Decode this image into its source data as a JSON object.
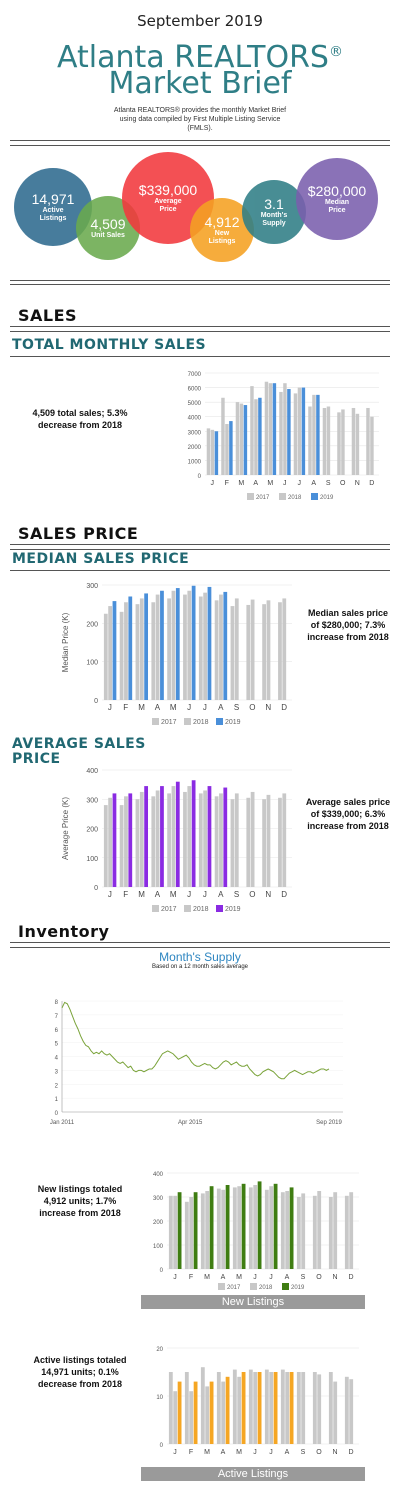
{
  "header": {
    "month": "September 2019",
    "title_line1": "Atlanta REALTORS",
    "reg_mark": "®",
    "title_line2": "Market Brief",
    "intro": "Atlanta REALTORS® provides the monthly Market Brief using data compiled by First Multiple Listing Service (FMLS)."
  },
  "bubbles": [
    {
      "value": "14,971",
      "label": "Active Listings",
      "color": "#2e6a8f"
    },
    {
      "value": "$339,000",
      "label": "Average Price",
      "color": "#f2383d"
    },
    {
      "value": "4,509",
      "label": "Unit Sales",
      "color": "#6aaa4e"
    },
    {
      "value": "4,912",
      "label": "New Listings",
      "color": "#f5a122"
    },
    {
      "value": "3.1",
      "label": "Month's Supply",
      "color": "#2f7e86"
    },
    {
      "value": "$280,000",
      "label": "Median Price",
      "color": "#7a5fae"
    }
  ],
  "sections": {
    "sales": "SALES",
    "total_monthly_sales": "TOTAL MONTHLY SALES",
    "sales_price": "SALES PRICE",
    "median_sales_price": "MEDIAN SALES PRICE",
    "average_sales_price_1": "AVERAGE SALES",
    "average_sales_price_2": "PRICE",
    "inventory": "Inventory"
  },
  "side_texts": {
    "sales": "4,509 total sales; 5.3% decrease from 2018",
    "median": "Median sales price of $280,000; 7.3% increase from 2018",
    "average": "Average sales price of $339,000; 6.3% increase from 2018",
    "new_listings": "New listings totaled 4,912 units; 1.7% increase from 2018",
    "active_listings": "Active listings totaled 14,971 units; 0.1% decrease from 2018"
  },
  "chart_labels": {
    "months_supply_title": "Month's Supply",
    "months_supply_subtitle": "Based on a 12 month sales average",
    "new_listings_bar": "New Listings",
    "active_listings_bar": "Active Listings"
  },
  "colors": {
    "y2017": "#c8c8c8",
    "y2018": "#c8c8c8",
    "y2019_sales": "#4a8fd9",
    "y2019_median": "#4a8fd9",
    "y2019_average": "#8a2be2",
    "y2019_new": "#3f7d12",
    "y2019_active": "#f5a623",
    "line": "#7aa33a"
  },
  "chart_data": [
    {
      "type": "bar",
      "id": "total_monthly_sales",
      "categories": [
        "J",
        "F",
        "M",
        "A",
        "M",
        "J",
        "J",
        "A",
        "S",
        "O",
        "N",
        "D"
      ],
      "ylim": [
        0,
        7000
      ],
      "yticks": [
        0,
        1000,
        2000,
        3000,
        4000,
        5000,
        6000,
        7000
      ],
      "ylabel": "",
      "legend": [
        "2017",
        "2018",
        "2019"
      ],
      "series": [
        {
          "name": "2017",
          "values": [
            3200,
            5300,
            5000,
            6100,
            6400,
            5700,
            5600,
            4700,
            4600,
            4300,
            4600,
            4600
          ]
        },
        {
          "name": "2018",
          "values": [
            3100,
            3500,
            4900,
            5200,
            6300,
            6300,
            6000,
            5500,
            4700,
            4500,
            4200,
            4000
          ]
        },
        {
          "name": "2019",
          "values": [
            3000,
            3700,
            4800,
            5300,
            6300,
            5900,
            6000,
            5500,
            null,
            null,
            null,
            null
          ]
        }
      ]
    },
    {
      "type": "bar",
      "id": "median_sales_price",
      "categories": [
        "J",
        "F",
        "M",
        "A",
        "M",
        "J",
        "J",
        "A",
        "S",
        "O",
        "N",
        "D"
      ],
      "ylim": [
        0,
        300
      ],
      "yticks": [
        0,
        100,
        200,
        300
      ],
      "ylabel": "Median Price (K)",
      "legend": [
        "2017",
        "2018",
        "2019"
      ],
      "series": [
        {
          "name": "2017",
          "values": [
            225,
            230,
            250,
            255,
            265,
            275,
            270,
            260,
            245,
            248,
            250,
            255
          ]
        },
        {
          "name": "2018",
          "values": [
            245,
            255,
            265,
            275,
            285,
            285,
            280,
            275,
            265,
            262,
            260,
            265
          ]
        },
        {
          "name": "2019",
          "values": [
            258,
            270,
            278,
            285,
            292,
            298,
            295,
            282,
            null,
            null,
            null,
            null
          ]
        }
      ]
    },
    {
      "type": "bar",
      "id": "average_sales_price",
      "categories": [
        "J",
        "F",
        "M",
        "A",
        "M",
        "J",
        "J",
        "A",
        "S",
        "O",
        "N",
        "D"
      ],
      "ylim": [
        0,
        400
      ],
      "yticks": [
        0,
        100,
        200,
        300,
        400
      ],
      "ylabel": "Average Price (K)",
      "legend": [
        "2017",
        "2018",
        "2019"
      ],
      "series": [
        {
          "name": "2017",
          "values": [
            280,
            280,
            300,
            310,
            320,
            325,
            320,
            310,
            300,
            305,
            300,
            305
          ]
        },
        {
          "name": "2018",
          "values": [
            305,
            310,
            325,
            330,
            345,
            345,
            330,
            320,
            320,
            325,
            315,
            320
          ]
        },
        {
          "name": "2019",
          "values": [
            320,
            320,
            345,
            345,
            360,
            365,
            345,
            340,
            null,
            null,
            null,
            null
          ]
        }
      ]
    },
    {
      "type": "line",
      "id": "months_supply",
      "title": "Month's Supply",
      "subtitle": "Based on a 12 month sales average",
      "xticks": [
        "Jan 2011",
        "Apr 2015",
        "Sep 2019"
      ],
      "ylim": [
        0,
        8
      ],
      "yticks": [
        0,
        1,
        2,
        3,
        4,
        5,
        6,
        7,
        8
      ],
      "values": [
        7.5,
        7.9,
        7.8,
        7.4,
        6.9,
        6.4,
        6.0,
        5.5,
        5.1,
        4.8,
        4.7,
        4.4,
        4.2,
        4.3,
        4.2,
        4.4,
        4.2,
        4.1,
        4.2,
        4.0,
        3.8,
        3.6,
        3.5,
        3.6,
        3.4,
        3.2,
        3.3,
        3.0,
        2.9,
        3.0,
        3.0,
        2.9,
        3.0,
        3.1,
        3.1,
        3.3,
        3.6,
        3.9,
        4.2,
        4.3,
        4.4,
        4.3,
        4.2,
        4.0,
        3.8,
        3.9,
        4.0,
        4.1,
        3.9,
        3.6,
        3.4,
        3.3,
        3.3,
        3.4,
        3.5,
        3.4,
        3.4,
        3.2,
        3.1,
        3.2,
        3.4,
        3.6,
        3.7,
        3.6,
        3.4,
        3.5,
        3.6,
        3.4,
        3.3,
        3.3,
        3.4,
        3.1,
        2.9,
        2.7,
        2.6,
        2.7,
        2.9,
        3.0,
        3.1,
        3.0,
        2.9,
        2.7,
        2.5,
        2.4,
        2.4,
        2.6,
        2.8,
        2.9,
        3.0,
        2.9,
        2.8,
        2.7,
        2.8,
        2.9,
        2.9,
        2.8,
        2.9,
        3.0,
        3.1,
        3.1,
        3.0,
        3.1
      ]
    },
    {
      "type": "bar",
      "id": "new_listings",
      "categories": [
        "J",
        "F",
        "M",
        "A",
        "M",
        "J",
        "J",
        "A",
        "S",
        "O",
        "N",
        "D"
      ],
      "ylim": [
        0,
        400
      ],
      "yticks": [
        0,
        100,
        200,
        300,
        400
      ],
      "ylabel": "",
      "legend": [
        "2017",
        "2018",
        "2019"
      ],
      "series": [
        {
          "name": "2017",
          "values": [
            305,
            280,
            315,
            335,
            340,
            340,
            330,
            320,
            300,
            305,
            300,
            305
          ]
        },
        {
          "name": "2018",
          "values": [
            305,
            300,
            325,
            330,
            345,
            350,
            345,
            325,
            315,
            325,
            320,
            320
          ]
        },
        {
          "name": "2019",
          "values": [
            320,
            320,
            345,
            350,
            355,
            365,
            355,
            340,
            null,
            null,
            null,
            null
          ]
        }
      ]
    },
    {
      "type": "bar",
      "id": "active_listings",
      "categories": [
        "J",
        "F",
        "M",
        "A",
        "M",
        "J",
        "J",
        "A",
        "S",
        "O",
        "N",
        "D"
      ],
      "ylim": [
        0,
        20
      ],
      "yticks": [
        0,
        10,
        20
      ],
      "ylabel": "",
      "legend": [
        "2017",
        "2018",
        "2019"
      ],
      "series": [
        {
          "name": "2017",
          "values": [
            15,
            15,
            16,
            15,
            15.5,
            15.5,
            15.5,
            15.5,
            15,
            15,
            15,
            14
          ]
        },
        {
          "name": "2018",
          "values": [
            11,
            11,
            12,
            13,
            14,
            15,
            15,
            15,
            15,
            14.5,
            13,
            13.5
          ]
        },
        {
          "name": "2019",
          "values": [
            13,
            13,
            13,
            14,
            15,
            15,
            15,
            15,
            null,
            null,
            null,
            null
          ]
        }
      ]
    }
  ]
}
